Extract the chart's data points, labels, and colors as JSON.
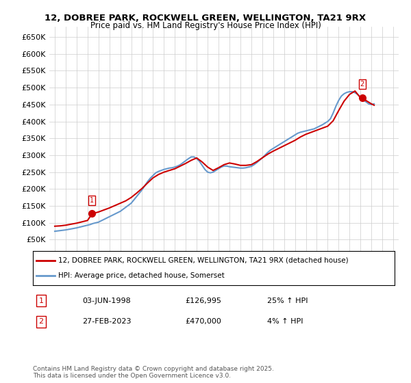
{
  "title": "12, DOBREE PARK, ROCKWELL GREEN, WELLINGTON, TA21 9RX",
  "subtitle": "Price paid vs. HM Land Registry's House Price Index (HPI)",
  "legend_line1": "12, DOBREE PARK, ROCKWELL GREEN, WELLINGTON, TA21 9RX (detached house)",
  "legend_line2": "HPI: Average price, detached house, Somerset",
  "annotation1_label": "1",
  "annotation1_date": "03-JUN-1998",
  "annotation1_price": "£126,995",
  "annotation1_hpi": "25% ↑ HPI",
  "annotation2_label": "2",
  "annotation2_date": "27-FEB-2023",
  "annotation2_price": "£470,000",
  "annotation2_hpi": "4% ↑ HPI",
  "copyright": "Contains HM Land Registry data © Crown copyright and database right 2025.\nThis data is licensed under the Open Government Licence v3.0.",
  "sale_color": "#cc0000",
  "hpi_color": "#6699cc",
  "background_color": "#ffffff",
  "grid_color": "#cccccc",
  "ylim": [
    0,
    680000
  ],
  "yticks": [
    0,
    50000,
    100000,
    150000,
    200000,
    250000,
    300000,
    350000,
    400000,
    450000,
    500000,
    550000,
    600000,
    650000
  ],
  "xlim_start": 1994.5,
  "xlim_end": 2026.5,
  "sale1_x": 1998.42,
  "sale1_y": 126995,
  "sale2_x": 2023.15,
  "sale2_y": 470000,
  "hpi_years": [
    1995,
    1995.25,
    1995.5,
    1995.75,
    1996,
    1996.25,
    1996.5,
    1996.75,
    1997,
    1997.25,
    1997.5,
    1997.75,
    1998,
    1998.25,
    1998.5,
    1998.75,
    1999,
    1999.25,
    1999.5,
    1999.75,
    2000,
    2000.25,
    2000.5,
    2000.75,
    2001,
    2001.25,
    2001.5,
    2001.75,
    2002,
    2002.25,
    2002.5,
    2002.75,
    2003,
    2003.25,
    2003.5,
    2003.75,
    2004,
    2004.25,
    2004.5,
    2004.75,
    2005,
    2005.25,
    2005.5,
    2005.75,
    2006,
    2006.25,
    2006.5,
    2006.75,
    2007,
    2007.25,
    2007.5,
    2007.75,
    2008,
    2008.25,
    2008.5,
    2008.75,
    2009,
    2009.25,
    2009.5,
    2009.75,
    2010,
    2010.25,
    2010.5,
    2010.75,
    2011,
    2011.25,
    2011.5,
    2011.75,
    2012,
    2012.25,
    2012.5,
    2012.75,
    2013,
    2013.25,
    2013.5,
    2013.75,
    2014,
    2014.25,
    2014.5,
    2014.75,
    2015,
    2015.25,
    2015.5,
    2015.75,
    2016,
    2016.25,
    2016.5,
    2016.75,
    2017,
    2017.25,
    2017.5,
    2017.75,
    2018,
    2018.25,
    2018.5,
    2018.75,
    2019,
    2019.25,
    2019.5,
    2019.75,
    2020,
    2020.25,
    2020.5,
    2020.75,
    2021,
    2021.25,
    2021.5,
    2021.75,
    2022,
    2022.25,
    2022.5,
    2022.75,
    2023,
    2023.25,
    2023.5,
    2023.75,
    2024,
    2024.25
  ],
  "hpi_values": [
    75000,
    76000,
    77000,
    78000,
    79000,
    80500,
    82000,
    83500,
    85000,
    87000,
    89000,
    91000,
    93000,
    95000,
    98000,
    100000,
    102000,
    106000,
    110000,
    114000,
    118000,
    122000,
    126000,
    130000,
    134000,
    140000,
    146000,
    152000,
    158000,
    168000,
    178000,
    188000,
    198000,
    210000,
    222000,
    232000,
    240000,
    248000,
    252000,
    255000,
    258000,
    260000,
    262000,
    263000,
    265000,
    268000,
    272000,
    278000,
    284000,
    290000,
    295000,
    295000,
    290000,
    282000,
    270000,
    258000,
    250000,
    248000,
    250000,
    255000,
    260000,
    265000,
    268000,
    268000,
    266000,
    265000,
    264000,
    263000,
    262000,
    262000,
    263000,
    265000,
    267000,
    272000,
    278000,
    285000,
    292000,
    300000,
    308000,
    315000,
    320000,
    325000,
    330000,
    335000,
    340000,
    345000,
    350000,
    355000,
    360000,
    365000,
    368000,
    370000,
    372000,
    374000,
    376000,
    378000,
    382000,
    386000,
    390000,
    395000,
    400000,
    408000,
    425000,
    445000,
    462000,
    475000,
    482000,
    486000,
    488000,
    488000,
    485000,
    480000,
    472000,
    465000,
    458000,
    452000,
    450000,
    452000
  ],
  "sold_line_years": [
    1995,
    1995.5,
    1996,
    1996.5,
    1997,
    1997.5,
    1998,
    1998.42,
    1999,
    1999.5,
    2000,
    2000.5,
    2001,
    2001.5,
    2002,
    2002.5,
    2003,
    2003.5,
    2004,
    2004.5,
    2005,
    2005.5,
    2006,
    2006.5,
    2007,
    2007.5,
    2008,
    2008.5,
    2009,
    2009.5,
    2010,
    2010.5,
    2011,
    2011.5,
    2012,
    2012.5,
    2013,
    2013.5,
    2014,
    2014.5,
    2015,
    2015.5,
    2016,
    2016.5,
    2017,
    2017.5,
    2018,
    2018.5,
    2019,
    2019.5,
    2020,
    2020.5,
    2021,
    2021.5,
    2022,
    2022.5,
    2023,
    2023.15,
    2023.5,
    2024,
    2024.25
  ],
  "sold_line_values": [
    90000,
    91000,
    93000,
    96000,
    99000,
    103000,
    107000,
    126995,
    132000,
    138000,
    144000,
    151000,
    158000,
    165000,
    175000,
    188000,
    202000,
    218000,
    233000,
    243000,
    250000,
    255000,
    260000,
    268000,
    276000,
    285000,
    292000,
    280000,
    265000,
    255000,
    263000,
    272000,
    277000,
    274000,
    270000,
    270000,
    272000,
    281000,
    292000,
    303000,
    312000,
    320000,
    328000,
    336000,
    344000,
    354000,
    362000,
    368000,
    374000,
    380000,
    386000,
    402000,
    432000,
    460000,
    480000,
    490000,
    470000,
    470000,
    462000,
    452000,
    448000
  ]
}
